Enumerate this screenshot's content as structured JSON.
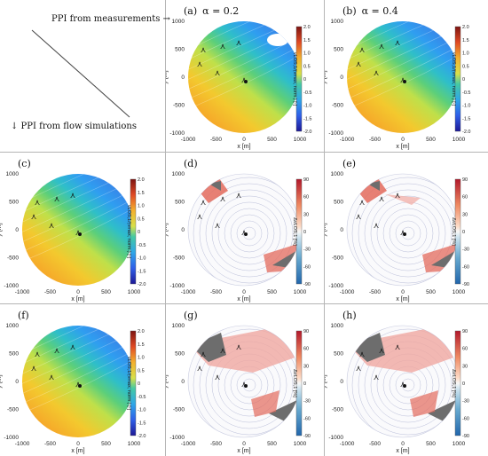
{
  "corner": {
    "measurements": "PPI from measurements →",
    "simulations": "↓ PPI from flow simulations"
  },
  "panels": [
    {
      "id": "a",
      "label": "(a)",
      "alpha": "α = 0.2",
      "type": "norm",
      "bar": "vLOS,1/(vmax, norm.) [-]"
    },
    {
      "id": "b",
      "label": "(b)",
      "alpha": "α = 0.4",
      "type": "norm",
      "bar": "vLOS,1/(vmax, norm.) [-]"
    },
    {
      "id": "c",
      "label": "(c)",
      "alpha": "",
      "type": "norm",
      "bar": "vLOS,1/(vmax, norm.) [-]"
    },
    {
      "id": "d",
      "label": "(d)",
      "alpha": "",
      "type": "diff",
      "bar": "ΔvLOS,1 [%]"
    },
    {
      "id": "e",
      "label": "(e)",
      "alpha": "",
      "type": "diff",
      "bar": "ΔvLOS,1 [%]"
    },
    {
      "id": "f",
      "label": "(f)",
      "alpha": "",
      "type": "norm",
      "bar": "vLOS,1/(vmax, norm.) [-]"
    },
    {
      "id": "g",
      "label": "(g)",
      "alpha": "",
      "type": "diff",
      "bar": "ΔvLOS,1 [%]"
    },
    {
      "id": "h",
      "label": "(h)",
      "alpha": "",
      "type": "diff",
      "bar": "ΔvLOS,1 [%]"
    }
  ],
  "axes": {
    "xlabel": "x [m]",
    "ylabel": "y [m]",
    "xticks": [
      "-1000",
      "-500",
      "0",
      "500",
      "1000"
    ],
    "yticks": [
      "1000",
      "500",
      "0",
      "-500",
      "-1000"
    ]
  },
  "colorbar_norm_ticks": [
    "2.0",
    "1.5",
    "1.0",
    "0.5",
    "0",
    "-0.5",
    "-1.0",
    "-1.5",
    "-2.0"
  ],
  "colorbar_diff_ticks": [
    "90",
    "60",
    "30",
    "0",
    "-30",
    "-60",
    "-90"
  ]
}
